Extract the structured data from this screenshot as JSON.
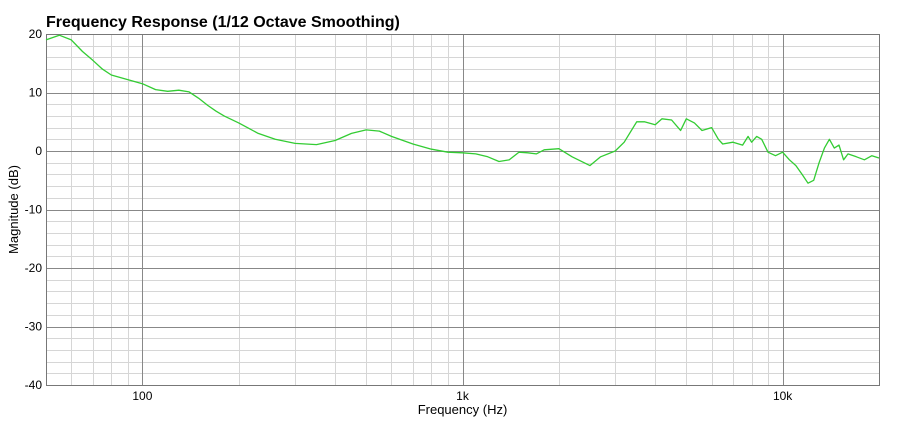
{
  "chart_data": {
    "type": "line",
    "title": "Frequency Response (1/12 Octave Smoothing)",
    "xlabel": "Frequency (Hz)",
    "ylabel": "Magnitude (dB)",
    "x_scale": "log",
    "xlim": [
      50,
      20000
    ],
    "ylim": [
      -40,
      20
    ],
    "xticks": [
      {
        "value": 100,
        "label": "100"
      },
      {
        "value": 1000,
        "label": "1k"
      },
      {
        "value": 10000,
        "label": "10k"
      }
    ],
    "yticks": [
      {
        "value": 20,
        "label": "20"
      },
      {
        "value": 10,
        "label": "10"
      },
      {
        "value": 0,
        "label": "0"
      },
      {
        "value": -10,
        "label": "-10"
      },
      {
        "value": -20,
        "label": "-20"
      },
      {
        "value": -30,
        "label": "-30"
      },
      {
        "value": -40,
        "label": "-40"
      }
    ],
    "grid": true,
    "colors": {
      "line": "#33cc33",
      "grid_major": "#888888",
      "grid_minor": "#d6d6d6",
      "frame": "#777777"
    },
    "series": [
      {
        "x": [
          50,
          55,
          60,
          65,
          70,
          75,
          80,
          90,
          100,
          110,
          120,
          130,
          140,
          150,
          160,
          170,
          180,
          200,
          230,
          260,
          300,
          350,
          400,
          450,
          500,
          550,
          600,
          700,
          800,
          900,
          1000,
          1100,
          1200,
          1300,
          1400,
          1500,
          1600,
          1700,
          1800,
          2000,
          2200,
          2500,
          2700,
          3000,
          3200,
          3500,
          3700,
          4000,
          4200,
          4500,
          4800,
          5000,
          5300,
          5600,
          6000,
          6300,
          6500,
          7000,
          7500,
          7800,
          8000,
          8300,
          8600,
          9000,
          9500,
          10000,
          10500,
          11000,
          11500,
          12000,
          12500,
          13000,
          13500,
          14000,
          14500,
          15000,
          15500,
          16000,
          17000,
          18000,
          19000,
          20000
        ],
        "y": [
          19.0,
          19.8,
          19.0,
          17.0,
          15.5,
          14.0,
          13.0,
          12.2,
          11.5,
          10.5,
          10.2,
          10.4,
          10.1,
          9.0,
          7.8,
          6.8,
          6.0,
          4.8,
          3.0,
          2.0,
          1.3,
          1.1,
          1.8,
          3.0,
          3.6,
          3.4,
          2.5,
          1.2,
          0.3,
          -0.2,
          -0.3,
          -0.5,
          -1.0,
          -1.8,
          -1.5,
          -0.2,
          -0.3,
          -0.5,
          0.2,
          0.4,
          -1.0,
          -2.5,
          -1.0,
          0.0,
          1.5,
          5.0,
          5.0,
          4.5,
          5.5,
          5.3,
          3.5,
          5.5,
          4.8,
          3.5,
          4.0,
          2.0,
          1.2,
          1.5,
          1.0,
          2.5,
          1.5,
          2.5,
          2.0,
          -0.2,
          -0.8,
          -0.2,
          -1.5,
          -2.5,
          -4.0,
          -5.5,
          -5.0,
          -2.0,
          0.5,
          2.0,
          0.5,
          1.0,
          -1.5,
          -0.5,
          -1.0,
          -1.5,
          -0.8,
          -1.2
        ]
      }
    ]
  }
}
